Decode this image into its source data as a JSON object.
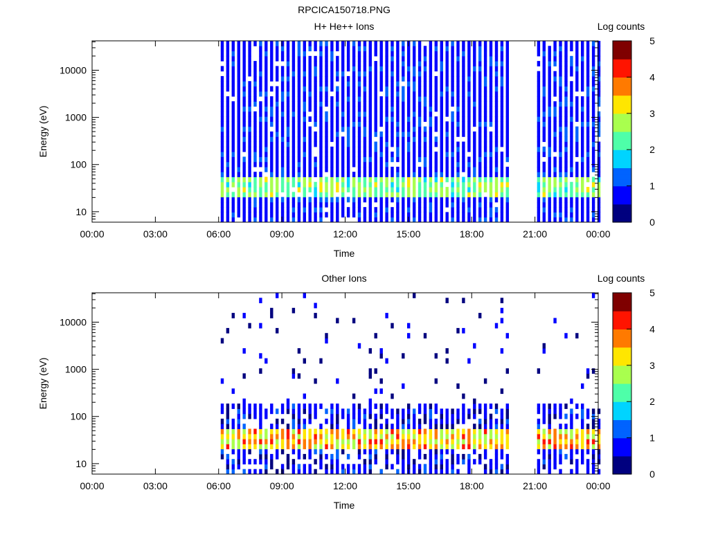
{
  "figure": {
    "filename": "RPCICA150718.PNG"
  },
  "colormap": [
    "#00007f",
    "#0000ff",
    "#0063ff",
    "#00d4ff",
    "#4effa9",
    "#a9ff4e",
    "#ffe600",
    "#ff7a00",
    "#ff1400",
    "#7f0000"
  ],
  "chart_data": [
    {
      "type": "heatmap",
      "title": "H+ He++ Ions",
      "xlabel": "Time",
      "ylabel": "Energy (eV)",
      "x_ticks": [
        "00:00",
        "03:00",
        "06:00",
        "09:00",
        "12:00",
        "15:00",
        "18:00",
        "21:00",
        "00:00"
      ],
      "y_ticks": [
        "10",
        "100",
        "1000",
        "10000"
      ],
      "xlim_hours": [
        0,
        24
      ],
      "ylim_ev": [
        6,
        42000
      ],
      "y_scale": "log",
      "colorbar": {
        "label": "Log counts",
        "ticks": [
          "0",
          "1",
          "2",
          "3",
          "4",
          "5"
        ],
        "range": [
          0,
          5
        ]
      },
      "data_intervals_hours": [
        [
          6.1,
          19.8
        ],
        [
          21.1,
          24.0
        ]
      ],
      "band_ev": [
        20,
        60
      ],
      "band_level": 2.5
    },
    {
      "type": "heatmap",
      "title": "Other Ions",
      "xlabel": "Time",
      "ylabel": "Energy (eV)",
      "x_ticks": [
        "00:00",
        "03:00",
        "06:00",
        "09:00",
        "12:00",
        "15:00",
        "18:00",
        "21:00",
        "00:00"
      ],
      "y_ticks": [
        "10",
        "100",
        "1000",
        "10000"
      ],
      "xlim_hours": [
        0,
        24
      ],
      "ylim_ev": [
        6,
        42000
      ],
      "y_scale": "log",
      "colorbar": {
        "label": "Log counts",
        "ticks": [
          "0",
          "1",
          "2",
          "3",
          "4",
          "5"
        ],
        "range": [
          0,
          5
        ]
      },
      "data_intervals_hours": [
        [
          6.1,
          19.8
        ],
        [
          21.1,
          24.0
        ]
      ],
      "band_ev": [
        20,
        60
      ],
      "band_level": 3.8
    }
  ]
}
